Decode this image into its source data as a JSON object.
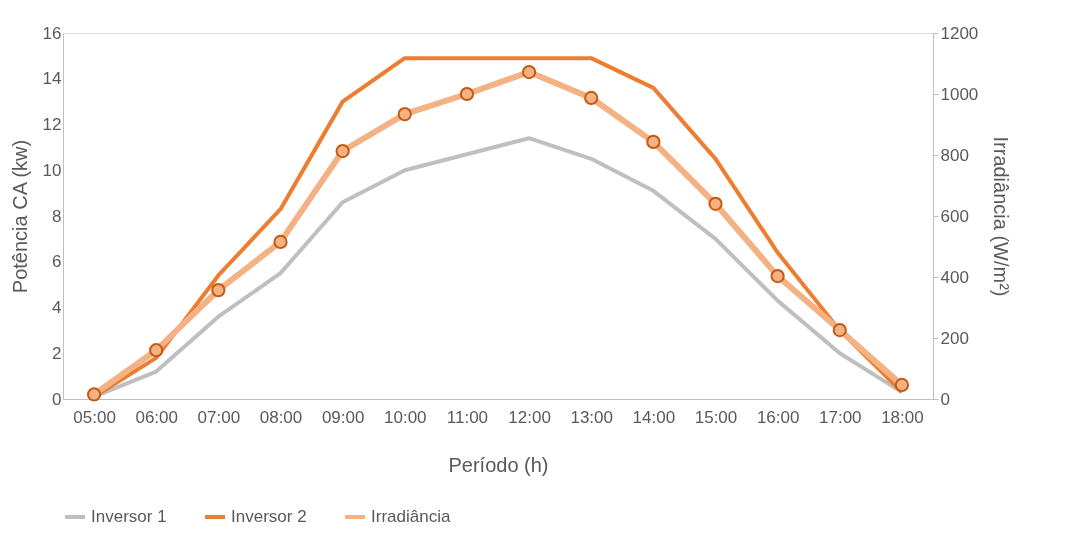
{
  "chart_data": {
    "type": "line",
    "xlabel": "Período (h)",
    "ylabel": "Potência CA (kw)",
    "y2label": "Irradiância (W/m²)",
    "categories": [
      "05:00",
      "06:00",
      "07:00",
      "08:00",
      "09:00",
      "10:00",
      "11:00",
      "12:00",
      "13:00",
      "14:00",
      "15:00",
      "16:00",
      "17:00",
      "18:00"
    ],
    "series": [
      {
        "name": "Inversor 1",
        "color": "#bfbfbf",
        "marker": "none",
        "values": [
          0.1,
          1.2,
          3.6,
          5.5,
          8.6,
          10.0,
          10.7,
          11.4,
          10.5,
          9.1,
          7.0,
          4.3,
          2.0,
          0.3
        ]
      },
      {
        "name": "Inversor 2",
        "color": "#ed7d31",
        "marker": "none",
        "values": [
          0.1,
          1.8,
          5.4,
          8.3,
          13.0,
          14.9,
          14.9,
          14.9,
          14.9,
          13.6,
          10.5,
          6.4,
          3.0,
          0.3
        ]
      },
      {
        "name": "Irradiância",
        "color": "#f4b183",
        "marker": "circle",
        "axis": "y2",
        "values": [
          15,
          160,
          357,
          515,
          813,
          934,
          1000,
          1072,
          987,
          843,
          640,
          403,
          226,
          46
        ]
      }
    ],
    "ylim": [
      0,
      16
    ],
    "yticks": [
      0,
      2,
      4,
      6,
      8,
      10,
      12,
      14,
      16
    ],
    "y2lim": [
      0,
      1200
    ],
    "y2ticks": [
      0,
      200,
      400,
      600,
      800,
      1000,
      1200
    ],
    "grid": false,
    "legend": "bottom"
  }
}
